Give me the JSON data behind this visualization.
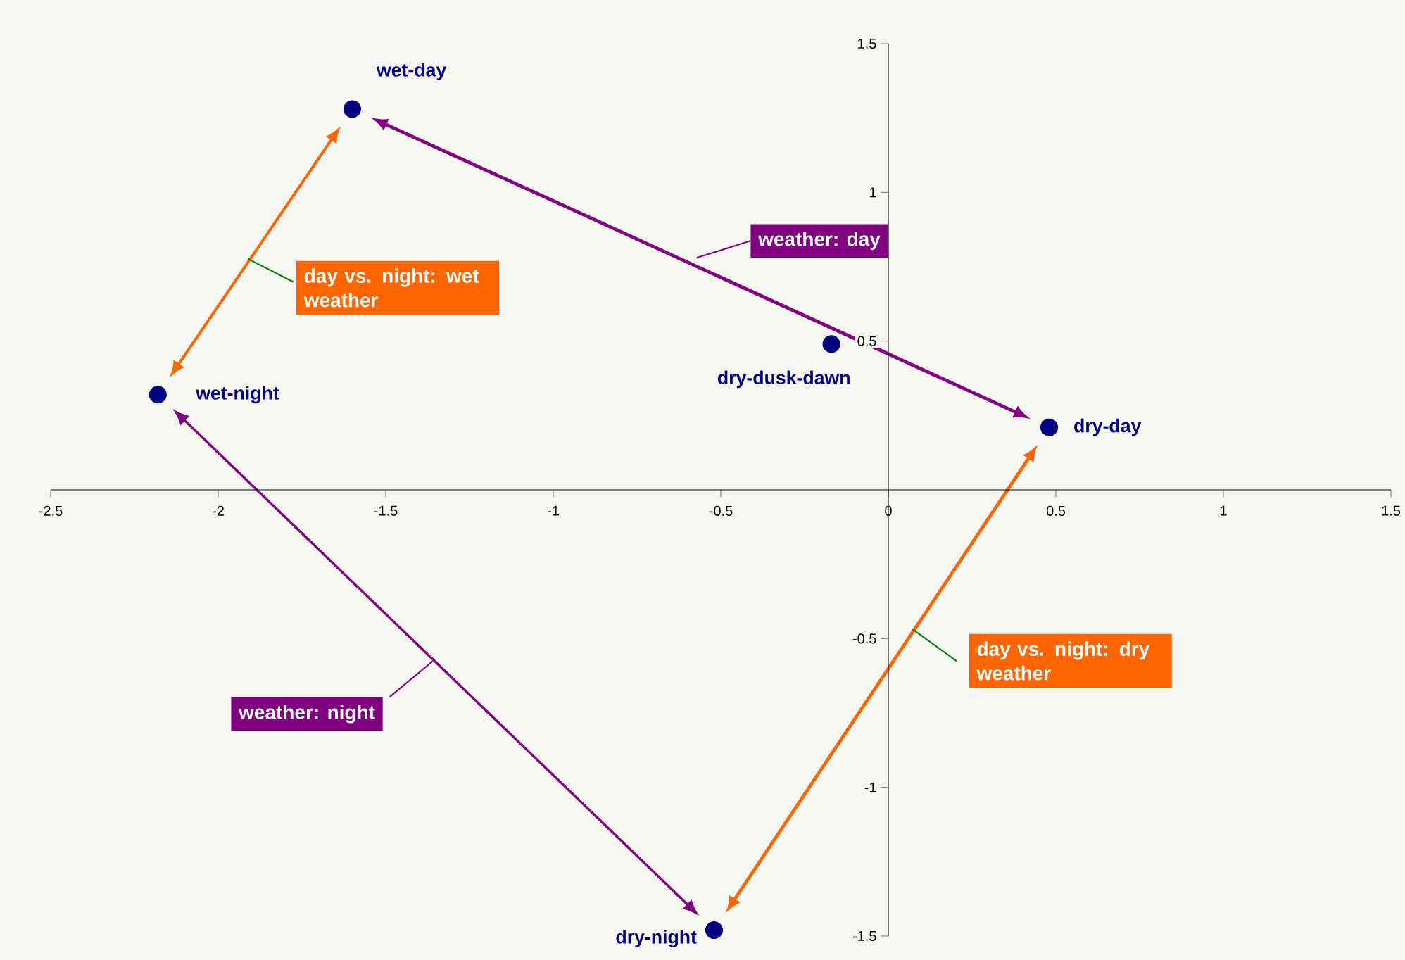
{
  "chart_data": {
    "type": "scatter",
    "xlim": [
      -2.5,
      1.5
    ],
    "ylim": [
      -1.5,
      1.5
    ],
    "xticks": [
      -2.5,
      -2,
      -1.5,
      -1,
      -0.5,
      0,
      0.5,
      1,
      1.5
    ],
    "yticks": [
      -1.5,
      -1,
      -0.5,
      0.5,
      1,
      1.5
    ],
    "series": [
      {
        "color": "#000080",
        "marker": "circle",
        "x": [
          -1.6,
          -2.18,
          -0.17,
          0.48,
          -0.52
        ],
        "values": [
          1.28,
          0.32,
          0.49,
          0.21,
          -1.48
        ]
      }
    ],
    "annotations": [
      {
        "text": "wet-day",
        "x": -1.6,
        "y": 1.28
      },
      {
        "text": "wet-night",
        "x": -2.18,
        "y": 0.32
      },
      {
        "text": "dry-dusk-dawn",
        "x": -0.17,
        "y": 0.49
      },
      {
        "text": "dry-day",
        "x": 0.48,
        "y": 0.21
      },
      {
        "text": "dry-night",
        "x": -0.52,
        "y": -1.48
      },
      "weather: day",
      "day vs. night: wet weather",
      "weather: night",
      "day vs. night: dry weather"
    ]
  }
}
